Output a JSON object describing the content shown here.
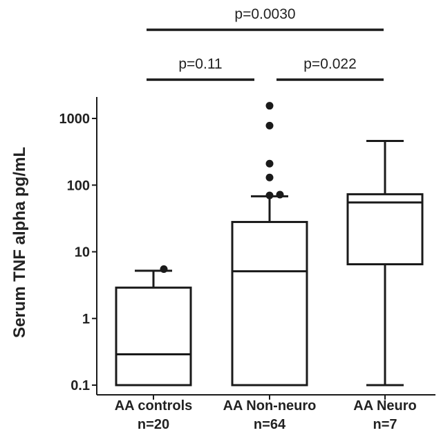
{
  "chart_data": {
    "type": "box",
    "ylabel": "Serum TNF alpha pg/mL",
    "yscale": "log",
    "ylim": [
      0.08,
      2000
    ],
    "yticks": [
      0.1,
      1,
      10,
      100,
      1000
    ],
    "ytick_labels": [
      "0.1",
      "1",
      "10",
      "100",
      "1000"
    ],
    "grid": false,
    "groups": [
      {
        "name": "AA controls",
        "n": "n=20",
        "min": 0.1,
        "q1": 0.1,
        "median": 0.29,
        "q3": 2.9,
        "max": 5.2,
        "outliers": [
          5.5
        ]
      },
      {
        "name": "AA Non-neuro",
        "n": "n=64",
        "min": 0.1,
        "q1": 0.1,
        "median": 5.1,
        "q3": 28,
        "max": 68,
        "outliers": [
          70,
          72,
          130,
          210,
          780,
          1550
        ]
      },
      {
        "name": "AA Neuro",
        "n": "n=7",
        "min": 0.1,
        "q1": 6.5,
        "median": 55,
        "q3": 73,
        "max": 460,
        "outliers": []
      }
    ],
    "comparisons": [
      {
        "groups": [
          0,
          1
        ],
        "label": "p=0.11",
        "level": 1
      },
      {
        "groups": [
          1,
          2
        ],
        "label": "p=0.022",
        "level": 1
      },
      {
        "groups": [
          0,
          2
        ],
        "label": "p=0.0030",
        "level": 2
      }
    ]
  }
}
